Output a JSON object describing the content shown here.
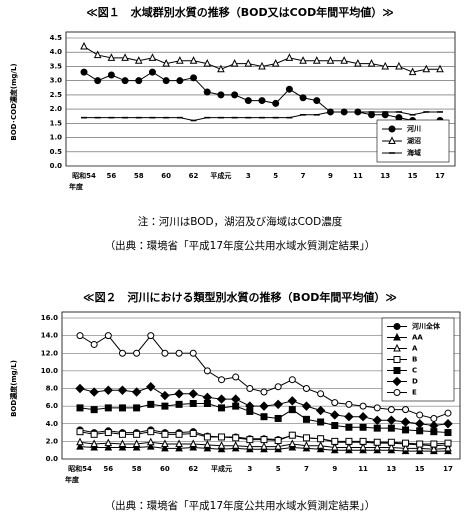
{
  "chart_data": [
    {
      "type": "line",
      "title": "≪図１　水域群別水質の推移（BOD又はCOD年間平均値）≫",
      "ylabel": "BOD･COD濃度(mg/L)",
      "xlabel": "年度",
      "categories": [
        "昭和54",
        null,
        "56",
        null,
        "58",
        null,
        "60",
        null,
        "62",
        null,
        "平成元",
        null,
        "3",
        null,
        "5",
        null,
        "7",
        null,
        "9",
        null,
        "11",
        null,
        "13",
        null,
        "15",
        null,
        "17"
      ],
      "ylim": [
        0,
        4.5
      ],
      "yticks": [
        {
          "value": 0,
          "label": "0.0"
        },
        0.5,
        {
          "value": 1,
          "label": "1.0"
        },
        1.5,
        {
          "value": 2,
          "label": "2.0"
        },
        2.5,
        {
          "value": 3,
          "label": "3.0"
        },
        3.5,
        {
          "value": 4,
          "label": "4.0"
        },
        4.5
      ],
      "grid": true,
      "legend": "lower right",
      "series": [
        {
          "name": "河川",
          "color": "#000000",
          "marker": "circle",
          "values": [
            3.3,
            3.0,
            3.2,
            3.0,
            3.0,
            3.3,
            3.0,
            3.0,
            3.1,
            2.6,
            2.5,
            2.5,
            2.3,
            2.3,
            2.2,
            2.7,
            2.4,
            2.3,
            1.9,
            1.9,
            1.9,
            1.8,
            1.8,
            1.7,
            1.6,
            1.5,
            1.6
          ]
        },
        {
          "name": "湖沼",
          "color": "#000000",
          "marker": "triangle-open",
          "values": [
            4.2,
            3.9,
            3.8,
            3.8,
            3.7,
            3.8,
            3.6,
            3.7,
            3.7,
            3.6,
            3.4,
            3.6,
            3.6,
            3.5,
            3.6,
            3.8,
            3.7,
            3.7,
            3.7,
            3.7,
            3.6,
            3.6,
            3.5,
            3.5,
            3.3,
            3.4,
            3.4
          ]
        },
        {
          "name": "海域",
          "color": "#000000",
          "marker": "dash",
          "values": [
            1.7,
            1.7,
            1.7,
            1.7,
            1.7,
            1.7,
            1.7,
            1.7,
            1.6,
            1.7,
            1.7,
            1.7,
            1.7,
            1.7,
            1.7,
            1.7,
            1.8,
            1.8,
            1.9,
            1.9,
            1.9,
            1.9,
            1.9,
            1.9,
            1.8,
            1.9,
            1.9
          ]
        }
      ]
    },
    {
      "type": "line",
      "title": "≪図２　河川における類型別水質の推移（BOD年間平均値）≫",
      "ylabel": "BOD濃度(mg/L)",
      "xlabel": "年度",
      "categories": [
        "昭和54",
        null,
        "56",
        null,
        "58",
        null,
        "60",
        null,
        "62",
        null,
        "平成元",
        null,
        "3",
        null,
        "5",
        null,
        "7",
        null,
        "9",
        null,
        "11",
        null,
        "13",
        null,
        "15",
        null,
        "17"
      ],
      "ylim": [
        0,
        16
      ],
      "yticks": [
        {
          "value": 0,
          "label": "0.0"
        },
        {
          "value": 2,
          "label": "2.0"
        },
        {
          "value": 4,
          "label": "4.0"
        },
        {
          "value": 6,
          "label": "6.0"
        },
        {
          "value": 8,
          "label": "8.0"
        },
        {
          "value": 10,
          "label": "10.0"
        },
        {
          "value": 12,
          "label": "12.0"
        },
        {
          "value": 14,
          "label": "14.0"
        },
        {
          "value": 16,
          "label": "16.0"
        }
      ],
      "grid": true,
      "legend": "upper right",
      "series": [
        {
          "name": "河川全体",
          "color": "#000000",
          "marker": "circle",
          "values": [
            3.3,
            3.0,
            3.2,
            3.0,
            3.0,
            3.3,
            3.0,
            3.0,
            3.1,
            2.6,
            2.5,
            2.5,
            2.3,
            2.3,
            2.2,
            2.7,
            2.4,
            2.3,
            1.9,
            1.9,
            1.9,
            1.8,
            1.8,
            1.7,
            1.6,
            1.5,
            1.6
          ]
        },
        {
          "name": "AA",
          "color": "#000000",
          "marker": "triangle",
          "values": [
            1.4,
            1.3,
            1.3,
            1.3,
            1.3,
            1.4,
            1.2,
            1.2,
            1.3,
            1.2,
            1.1,
            1.2,
            1.1,
            1.1,
            1.1,
            1.3,
            1.2,
            1.1,
            1.0,
            1.0,
            1.0,
            1.0,
            1.0,
            0.9,
            0.9,
            0.9,
            0.9
          ]
        },
        {
          "name": "A",
          "color": "#000000",
          "marker": "triangle-open",
          "values": [
            1.9,
            1.7,
            1.8,
            1.7,
            1.7,
            1.9,
            1.7,
            1.7,
            1.7,
            1.6,
            1.5,
            1.5,
            1.4,
            1.4,
            1.4,
            1.7,
            1.5,
            1.5,
            1.3,
            1.3,
            1.3,
            1.3,
            1.3,
            1.2,
            1.2,
            1.1,
            1.2
          ]
        },
        {
          "name": "B",
          "color": "#000000",
          "marker": "square-open",
          "values": [
            3.1,
            2.8,
            3.0,
            2.8,
            2.8,
            3.1,
            2.8,
            2.8,
            2.9,
            2.5,
            2.5,
            2.4,
            2.2,
            2.2,
            2.1,
            2.7,
            2.4,
            2.3,
            2.0,
            2.0,
            2.0,
            1.9,
            1.9,
            1.8,
            1.7,
            1.7,
            1.8
          ]
        },
        {
          "name": "C",
          "color": "#000000",
          "marker": "square",
          "values": [
            5.8,
            5.6,
            5.8,
            5.8,
            5.8,
            6.2,
            6.0,
            6.2,
            6.3,
            6.3,
            5.8,
            6.0,
            5.4,
            4.8,
            4.6,
            5.6,
            4.5,
            4.2,
            3.8,
            3.6,
            3.6,
            3.5,
            3.5,
            3.3,
            3.2,
            3.1,
            3.0
          ]
        },
        {
          "name": "D",
          "color": "#000000",
          "marker": "diamond",
          "values": [
            8.0,
            7.6,
            7.8,
            7.8,
            7.6,
            8.2,
            7.2,
            7.4,
            7.4,
            7.0,
            6.8,
            6.8,
            6.0,
            6.0,
            6.2,
            6.6,
            6.0,
            5.5,
            5.0,
            4.8,
            4.8,
            4.4,
            4.4,
            4.2,
            4.0,
            3.8,
            4.0
          ]
        },
        {
          "name": "E",
          "color": "#000000",
          "marker": "circle-open",
          "values": [
            14.0,
            13.0,
            14.0,
            12.0,
            12.0,
            14.0,
            12.0,
            12.0,
            12.0,
            10.0,
            9.0,
            9.3,
            8.0,
            7.6,
            8.2,
            9.0,
            8.0,
            7.4,
            6.4,
            6.2,
            6.0,
            5.8,
            5.6,
            5.6,
            5.0,
            4.6,
            5.2
          ]
        }
      ]
    }
  ],
  "notes": {
    "figure1_note": "注：河川はBOD，湖沼及び海域はCOD濃度",
    "figure1_source": "（出典：環境省「平成17年度公共用水域水質測定結果」）",
    "figure2_source": "（出典：環境省「平成17年度公共用水域水質測定結果」）"
  }
}
